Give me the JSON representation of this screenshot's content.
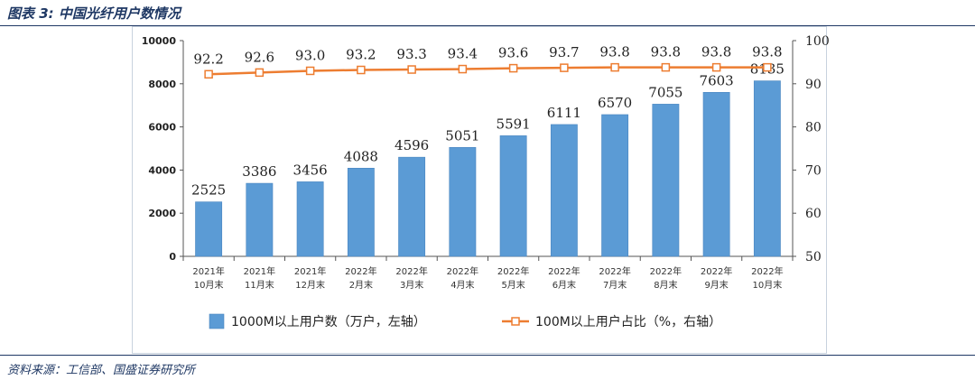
{
  "figure_title": "图表 3:  中国光纤用户数情况",
  "source_note": "资料来源：工信部、国盛证券研究所",
  "colors": {
    "bar": "#5B9BD5",
    "bar_edge": "#4a86c0",
    "line": "#ED7D31",
    "header": "#1F3864"
  },
  "chart_data": {
    "type": "bar",
    "title": "",
    "categories": [
      [
        "2021年",
        "10月末"
      ],
      [
        "2021年",
        "11月末"
      ],
      [
        "2021年",
        "12月末"
      ],
      [
        "2022年",
        "2月末"
      ],
      [
        "2022年",
        "3月末"
      ],
      [
        "2022年",
        "4月末"
      ],
      [
        "2022年",
        "5月末"
      ],
      [
        "2022年",
        "6月末"
      ],
      [
        "2022年",
        "7月末"
      ],
      [
        "2022年",
        "8月末"
      ],
      [
        "2022年",
        "9月末"
      ],
      [
        "2022年",
        "10月末"
      ]
    ],
    "series": [
      {
        "name": "1000M以上用户数（万户，左轴）",
        "type": "bar",
        "axis": "left",
        "values": [
          2525,
          3386,
          3456,
          4088,
          4596,
          5051,
          5591,
          6111,
          6570,
          7055,
          7603,
          8135
        ]
      },
      {
        "name": "100M以上用户占比（%，右轴）",
        "type": "line",
        "axis": "right",
        "values": [
          92.2,
          92.6,
          93.0,
          93.2,
          93.3,
          93.4,
          93.6,
          93.7,
          93.8,
          93.8,
          93.8,
          93.8
        ]
      }
    ],
    "left_axis": {
      "min": 0,
      "max": 10000,
      "ticks": [
        0,
        2000,
        4000,
        6000,
        8000,
        10000
      ]
    },
    "right_axis": {
      "min": 50,
      "max": 100,
      "ticks": [
        50,
        60,
        70,
        80,
        90,
        100
      ]
    },
    "value_labels": {
      "bars": [
        "2525",
        "3386",
        "3456",
        "4088",
        "4596",
        "5051",
        "5591",
        "6111",
        "6570",
        "7055",
        "7603",
        "8135"
      ],
      "line": [
        "92.2",
        "92.6",
        "93.0",
        "93.2",
        "93.3",
        "93.4",
        "93.6",
        "93.7",
        "93.8",
        "93.8",
        "93.8",
        "93.8"
      ]
    },
    "legend_position": "bottom",
    "grid": false
  }
}
